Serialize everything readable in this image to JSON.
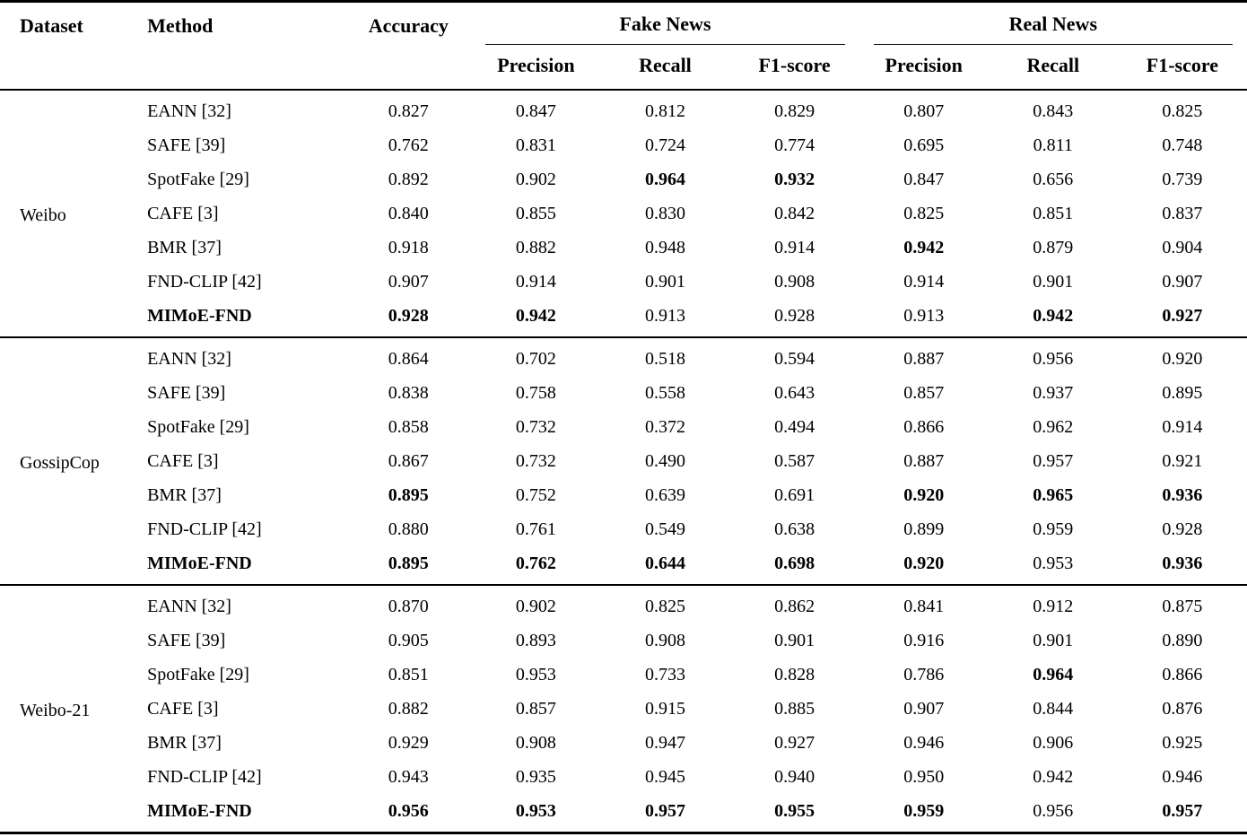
{
  "table": {
    "columns": {
      "dataset": "Dataset",
      "method": "Method",
      "accuracy": "Accuracy",
      "fake_news": "Fake News",
      "real_news": "Real News",
      "sub": [
        "Precision",
        "Recall",
        "F1-score"
      ]
    },
    "groups": [
      {
        "dataset": "Weibo",
        "rows": [
          {
            "method": "EANN [32]",
            "bold_method": false,
            "values": [
              "0.827",
              "0.847",
              "0.812",
              "0.829",
              "0.807",
              "0.843",
              "0.825"
            ],
            "bold": []
          },
          {
            "method": "SAFE [39]",
            "bold_method": false,
            "values": [
              "0.762",
              "0.831",
              "0.724",
              "0.774",
              "0.695",
              "0.811",
              "0.748"
            ],
            "bold": []
          },
          {
            "method": "SpotFake [29]",
            "bold_method": false,
            "values": [
              "0.892",
              "0.902",
              "0.964",
              "0.932",
              "0.847",
              "0.656",
              "0.739"
            ],
            "bold": [
              2,
              3
            ]
          },
          {
            "method": "CAFE [3]",
            "bold_method": false,
            "values": [
              "0.840",
              "0.855",
              "0.830",
              "0.842",
              "0.825",
              "0.851",
              "0.837"
            ],
            "bold": []
          },
          {
            "method": "BMR [37]",
            "bold_method": false,
            "values": [
              "0.918",
              "0.882",
              "0.948",
              "0.914",
              "0.942",
              "0.879",
              "0.904"
            ],
            "bold": [
              4
            ]
          },
          {
            "method": "FND-CLIP [42]",
            "bold_method": false,
            "values": [
              "0.907",
              "0.914",
              "0.901",
              "0.908",
              "0.914",
              "0.901",
              "0.907"
            ],
            "bold": []
          },
          {
            "method": "MIMoE-FND",
            "bold_method": true,
            "values": [
              "0.928",
              "0.942",
              "0.913",
              "0.928",
              "0.913",
              "0.942",
              "0.927"
            ],
            "bold": [
              0,
              1,
              5,
              6
            ]
          }
        ]
      },
      {
        "dataset": "GossipCop",
        "rows": [
          {
            "method": "EANN [32]",
            "bold_method": false,
            "values": [
              "0.864",
              "0.702",
              "0.518",
              "0.594",
              "0.887",
              "0.956",
              "0.920"
            ],
            "bold": []
          },
          {
            "method": "SAFE [39]",
            "bold_method": false,
            "values": [
              "0.838",
              "0.758",
              "0.558",
              "0.643",
              "0.857",
              "0.937",
              "0.895"
            ],
            "bold": []
          },
          {
            "method": "SpotFake [29]",
            "bold_method": false,
            "values": [
              "0.858",
              "0.732",
              "0.372",
              "0.494",
              "0.866",
              "0.962",
              "0.914"
            ],
            "bold": []
          },
          {
            "method": "CAFE [3]",
            "bold_method": false,
            "values": [
              "0.867",
              "0.732",
              "0.490",
              "0.587",
              "0.887",
              "0.957",
              "0.921"
            ],
            "bold": []
          },
          {
            "method": "BMR [37]",
            "bold_method": false,
            "values": [
              "0.895",
              "0.752",
              "0.639",
              "0.691",
              "0.920",
              "0.965",
              "0.936"
            ],
            "bold": [
              0,
              4,
              5,
              6
            ]
          },
          {
            "method": "FND-CLIP [42]",
            "bold_method": false,
            "values": [
              "0.880",
              "0.761",
              "0.549",
              "0.638",
              "0.899",
              "0.959",
              "0.928"
            ],
            "bold": []
          },
          {
            "method": "MIMoE-FND",
            "bold_method": true,
            "values": [
              "0.895",
              "0.762",
              "0.644",
              "0.698",
              "0.920",
              "0.953",
              "0.936"
            ],
            "bold": [
              0,
              1,
              2,
              3,
              4,
              6
            ]
          }
        ]
      },
      {
        "dataset": "Weibo-21",
        "rows": [
          {
            "method": "EANN [32]",
            "bold_method": false,
            "values": [
              "0.870",
              "0.902",
              "0.825",
              "0.862",
              "0.841",
              "0.912",
              "0.875"
            ],
            "bold": []
          },
          {
            "method": "SAFE [39]",
            "bold_method": false,
            "values": [
              "0.905",
              "0.893",
              "0.908",
              "0.901",
              "0.916",
              "0.901",
              "0.890"
            ],
            "bold": []
          },
          {
            "method": "SpotFake [29]",
            "bold_method": false,
            "values": [
              "0.851",
              "0.953",
              "0.733",
              "0.828",
              "0.786",
              "0.964",
              "0.866"
            ],
            "bold": [
              5
            ]
          },
          {
            "method": "CAFE [3]",
            "bold_method": false,
            "values": [
              "0.882",
              "0.857",
              "0.915",
              "0.885",
              "0.907",
              "0.844",
              "0.876"
            ],
            "bold": []
          },
          {
            "method": "BMR [37]",
            "bold_method": false,
            "values": [
              "0.929",
              "0.908",
              "0.947",
              "0.927",
              "0.946",
              "0.906",
              "0.925"
            ],
            "bold": []
          },
          {
            "method": "FND-CLIP [42]",
            "bold_method": false,
            "values": [
              "0.943",
              "0.935",
              "0.945",
              "0.940",
              "0.950",
              "0.942",
              "0.946"
            ],
            "bold": []
          },
          {
            "method": "MIMoE-FND",
            "bold_method": true,
            "values": [
              "0.956",
              "0.953",
              "0.957",
              "0.955",
              "0.959",
              "0.956",
              "0.957"
            ],
            "bold": [
              0,
              1,
              2,
              3,
              4,
              6
            ]
          }
        ]
      }
    ]
  }
}
